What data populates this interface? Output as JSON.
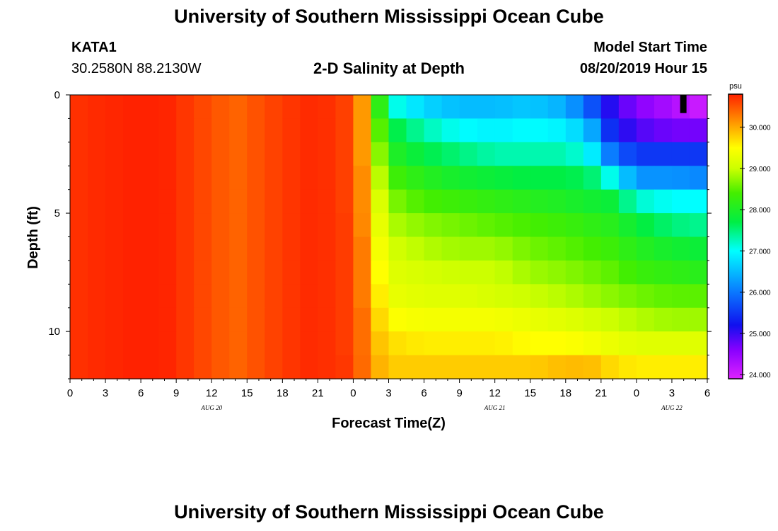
{
  "page": {
    "title_top": "University of Southern Mississippi Ocean Cube",
    "title_bottom": "University of Southern Mississippi Ocean Cube",
    "station_id": "KATA1",
    "station_coords": "30.2580N 88.2130W",
    "model_start_label": "Model Start Time",
    "model_start_value": "08/20/2019 Hour 15"
  },
  "chart_data": {
    "type": "heatmap",
    "title": "2-D Salinity at Depth",
    "xlabel": "Forecast Time(Z)",
    "ylabel": "Depth (ft)",
    "x_tick_labels": [
      "0",
      "3",
      "6",
      "9",
      "12",
      "15",
      "18",
      "21",
      "0",
      "3",
      "6",
      "9",
      "12",
      "15",
      "18",
      "21",
      "0",
      "3",
      "6"
    ],
    "x_date_labels": [
      {
        "label": "AUG 20",
        "at_hours": 12
      },
      {
        "label": "AUG 21",
        "at_hours": 36
      },
      {
        "label": "AUG 22",
        "at_hours": 51
      }
    ],
    "x_range_hours": [
      0,
      54
    ],
    "x_axis_start": "08/20/2019 00Z",
    "y_ticks": [
      0,
      5,
      10
    ],
    "y_range": [
      0,
      12
    ],
    "y_inverted": true,
    "colorbar": {
      "unit": "psu",
      "range": [
        23.9,
        30.8
      ],
      "tick_values": [
        24.0,
        25.0,
        26.0,
        27.0,
        28.0,
        29.0,
        30.0
      ],
      "tick_labels": [
        "24.000",
        "25.000",
        "26.000",
        "27.000",
        "28.000",
        "29.000",
        "30.000"
      ],
      "colors": [
        [
          23.9,
          "#dd22ff"
        ],
        [
          24.6,
          "#8800ff"
        ],
        [
          25.2,
          "#1010ee"
        ],
        [
          26.0,
          "#0a78ff"
        ],
        [
          27.0,
          "#00ffff"
        ],
        [
          27.7,
          "#00ee44"
        ],
        [
          28.4,
          "#44ee00"
        ],
        [
          29.0,
          "#ccff00"
        ],
        [
          29.5,
          "#ffff00"
        ],
        [
          30.0,
          "#ffaa00"
        ],
        [
          30.4,
          "#ff6600"
        ],
        [
          30.8,
          "#ff2200"
        ]
      ]
    },
    "depth_levels_ft": [
      0.5,
      1.5,
      2.5,
      3.5,
      4.5,
      5.5,
      6.5,
      7.5,
      8.5,
      9.5,
      10.5,
      11.5
    ],
    "time_knots_hours": [
      0,
      2,
      5,
      8,
      11,
      14,
      17,
      20,
      23,
      24,
      25,
      25.5,
      26,
      27,
      30,
      33,
      36,
      39,
      42,
      44,
      46,
      48,
      51,
      54
    ],
    "salinity_psu": [
      [
        30.7,
        30.75,
        30.8,
        30.8,
        30.6,
        30.4,
        30.6,
        30.75,
        30.7,
        30.4,
        30.0,
        29.4,
        28.5,
        27.2,
        26.7,
        26.5,
        26.5,
        26.6,
        26.4,
        25.8,
        25.0,
        24.6,
        24.3,
        24.0
      ],
      [
        30.7,
        30.75,
        30.8,
        30.8,
        30.6,
        30.4,
        30.6,
        30.75,
        30.7,
        30.4,
        30.0,
        29.5,
        28.7,
        27.8,
        27.3,
        27.0,
        26.9,
        27.0,
        26.9,
        26.5,
        25.3,
        24.9,
        24.7,
        24.7
      ],
      [
        30.7,
        30.75,
        30.8,
        30.8,
        30.6,
        30.4,
        30.6,
        30.75,
        30.7,
        30.4,
        30.0,
        29.6,
        28.9,
        28.1,
        27.7,
        27.5,
        27.3,
        27.3,
        27.3,
        27.0,
        25.9,
        25.5,
        25.5,
        25.5
      ],
      [
        30.7,
        30.75,
        30.8,
        30.8,
        30.6,
        30.4,
        30.6,
        30.75,
        30.7,
        30.4,
        30.1,
        29.7,
        29.1,
        28.4,
        28.1,
        27.9,
        27.8,
        27.7,
        27.7,
        27.6,
        27.0,
        26.2,
        26.2,
        26.1
      ],
      [
        30.7,
        30.75,
        30.8,
        30.8,
        30.6,
        30.4,
        30.6,
        30.75,
        30.7,
        30.4,
        30.1,
        29.75,
        29.3,
        28.7,
        28.4,
        28.3,
        28.2,
        28.1,
        28.0,
        27.9,
        27.8,
        27.2,
        27.0,
        27.0
      ],
      [
        30.7,
        30.75,
        30.8,
        30.8,
        30.6,
        30.4,
        30.6,
        30.75,
        30.7,
        30.5,
        30.1,
        29.8,
        29.4,
        28.9,
        28.7,
        28.6,
        28.5,
        28.4,
        28.3,
        28.2,
        28.1,
        27.8,
        27.5,
        27.4
      ],
      [
        30.7,
        30.75,
        30.8,
        30.8,
        30.6,
        30.4,
        30.6,
        30.75,
        30.7,
        30.5,
        30.2,
        29.9,
        29.5,
        29.1,
        28.9,
        28.8,
        28.8,
        28.6,
        28.5,
        28.4,
        28.3,
        28.1,
        27.9,
        27.8
      ],
      [
        30.7,
        30.75,
        30.8,
        30.8,
        30.6,
        30.4,
        30.6,
        30.75,
        30.7,
        30.5,
        30.2,
        29.95,
        29.6,
        29.2,
        29.1,
        29.0,
        29.0,
        28.8,
        28.7,
        28.6,
        28.5,
        28.3,
        28.2,
        28.1
      ],
      [
        30.7,
        30.75,
        30.8,
        30.8,
        30.6,
        30.4,
        30.6,
        30.75,
        30.7,
        30.5,
        30.2,
        30.0,
        29.7,
        29.3,
        29.2,
        29.2,
        29.1,
        29.0,
        28.9,
        28.8,
        28.7,
        28.6,
        28.5,
        28.5
      ],
      [
        30.7,
        30.75,
        30.8,
        30.8,
        30.6,
        30.4,
        30.6,
        30.75,
        30.7,
        30.5,
        30.3,
        30.0,
        29.8,
        29.5,
        29.4,
        29.4,
        29.4,
        29.3,
        29.2,
        29.1,
        29.0,
        28.9,
        28.8,
        28.8
      ],
      [
        30.7,
        30.75,
        30.8,
        30.8,
        30.6,
        30.4,
        30.6,
        30.75,
        30.7,
        30.5,
        30.3,
        30.1,
        29.9,
        29.7,
        29.6,
        29.6,
        29.6,
        29.5,
        29.5,
        29.4,
        29.3,
        29.2,
        29.2,
        29.2
      ],
      [
        30.7,
        30.75,
        30.8,
        30.8,
        30.6,
        30.4,
        30.6,
        30.75,
        30.7,
        30.6,
        30.3,
        30.1,
        30.0,
        29.8,
        29.8,
        29.8,
        29.8,
        29.8,
        29.9,
        29.9,
        29.7,
        29.6,
        29.6,
        29.6
      ]
    ],
    "marker": {
      "hour": 52,
      "depth_ft": 0.25,
      "color": "#000000"
    },
    "grid": false,
    "legend": "none (colorbar right)"
  }
}
